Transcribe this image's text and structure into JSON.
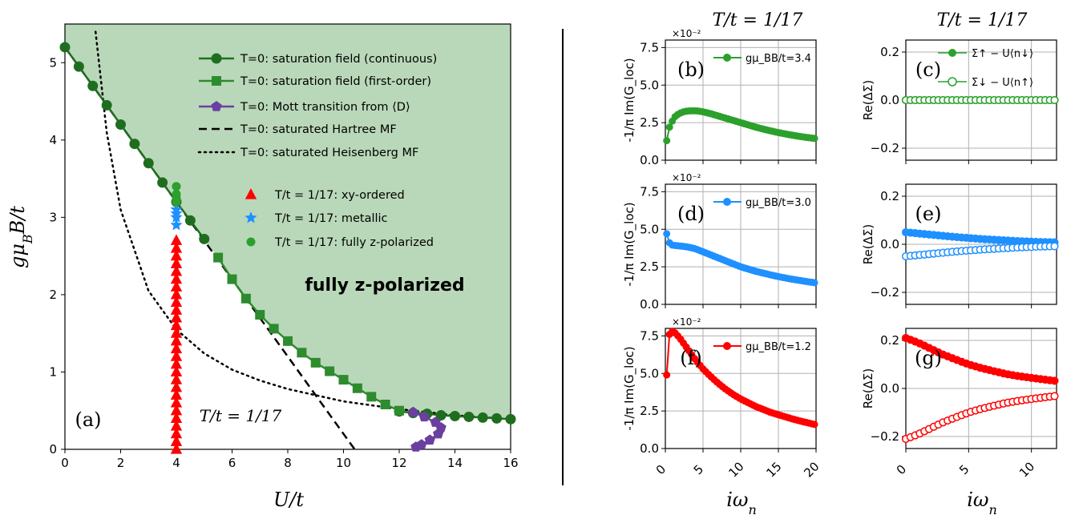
{
  "chart_data": [
    {
      "type": "line",
      "panel": "(a)",
      "xlabel": "U/t",
      "ylabel": "gμ_B B/t",
      "xlim": [
        0,
        16
      ],
      "ylim": [
        0,
        5.5
      ],
      "xticks": [
        "0",
        "2",
        "4",
        "6",
        "8",
        "10",
        "12",
        "14",
        "16"
      ],
      "yticks": [
        "0",
        "1",
        "2",
        "3",
        "4",
        "5"
      ],
      "grid": false,
      "legend": "top-right",
      "region_label": "fully z-polarized",
      "temperature_label": "T/t = 1/17",
      "series": [
        {
          "name": "T=0: saturation field (continuous)",
          "color": "#1f6e1f",
          "marker": "circle",
          "x": [
            0,
            0.5,
            1,
            1.5,
            2,
            2.5,
            3,
            3.5,
            4,
            4.5,
            5
          ],
          "y": [
            5.2,
            4.95,
            4.7,
            4.45,
            4.2,
            3.95,
            3.7,
            3.45,
            3.2,
            2.96,
            2.72
          ]
        },
        {
          "name": "T=0: saturation field (continuous)",
          "color": "#1f6e1f",
          "marker": "circle",
          "x": [
            12,
            12.5,
            13,
            13.5,
            14,
            14.5,
            15,
            15.5,
            16
          ],
          "y": [
            0.49,
            0.47,
            0.46,
            0.44,
            0.43,
            0.42,
            0.41,
            0.4,
            0.39
          ]
        },
        {
          "name": "T=0: saturation field (first-order)",
          "color": "#2e8b2e",
          "marker": "square",
          "x": [
            5.5,
            6,
            6.5,
            7,
            7.5,
            8,
            8.5,
            9,
            9.5,
            10,
            10.5,
            11,
            11.5,
            12
          ],
          "y": [
            2.48,
            2.2,
            1.95,
            1.74,
            1.56,
            1.4,
            1.25,
            1.12,
            1.01,
            0.9,
            0.79,
            0.68,
            0.58,
            0.5
          ]
        },
        {
          "name": "T=0: Mott transition from ⟨D⟩",
          "color": "#6b3fa0",
          "marker": "pentagon",
          "x": [
            12.5,
            12.9,
            13.3,
            13.5,
            13.4,
            13.1,
            12.8,
            12.6
          ],
          "y": [
            0.48,
            0.42,
            0.35,
            0.28,
            0.2,
            0.12,
            0.06,
            0.03
          ]
        },
        {
          "name": "T=0: saturated Hartree MF",
          "color": "#000000",
          "dash": "dashed",
          "x": [
            0,
            10.4
          ],
          "y": [
            5.2,
            0
          ]
        },
        {
          "name": "T=0: saturated Heisenberg MF",
          "color": "#000000",
          "dash": "dotted",
          "x": [
            1.1,
            1.5,
            2,
            3,
            4,
            5,
            6,
            7,
            8,
            10,
            12,
            14,
            16
          ],
          "y": [
            5.4,
            4.1,
            3.1,
            2.05,
            1.55,
            1.24,
            1.03,
            0.89,
            0.78,
            0.62,
            0.52,
            0.44,
            0.39
          ]
        },
        {
          "name": "T/t=1/17: xy-ordered",
          "color": "#ff0000",
          "marker": "triangle",
          "x": [
            4,
            4,
            4,
            4,
            4,
            4,
            4,
            4,
            4,
            4,
            4,
            4,
            4,
            4,
            4,
            4,
            4,
            4,
            4,
            4,
            4,
            4,
            4,
            4,
            4,
            4,
            4,
            4
          ],
          "y": [
            0,
            0.1,
            0.2,
            0.3,
            0.4,
            0.5,
            0.6,
            0.7,
            0.8,
            0.9,
            1.0,
            1.1,
            1.2,
            1.3,
            1.4,
            1.5,
            1.6,
            1.7,
            1.8,
            1.9,
            2.0,
            2.1,
            2.2,
            2.3,
            2.4,
            2.5,
            2.6,
            2.7
          ]
        },
        {
          "name": "T/t=1/17: metallic",
          "color": "#1e90ff",
          "marker": "star",
          "x": [
            4,
            4,
            4,
            4
          ],
          "y": [
            2.9,
            3.0,
            3.05,
            3.1
          ]
        },
        {
          "name": "T/t=1/17: fully z-polarized",
          "color": "#2ca02c",
          "marker": "circle",
          "x": [
            4,
            4,
            4,
            4
          ],
          "y": [
            3.2,
            3.25,
            3.3,
            3.4
          ]
        }
      ]
    },
    {
      "type": "line",
      "panel": "(b)",
      "title": "T/t = 1/17",
      "xlim": [
        0,
        20
      ],
      "ylim": [
        0,
        8
      ],
      "y_multiplier": "×10⁻²",
      "legend_label": "gμ_BB/t=3.4",
      "color": "#2ca02c",
      "ylabel": "-1/π Im(G_loc)",
      "x": [
        0.18,
        0.55,
        0.92,
        1.29,
        1.66,
        2.03,
        2.4,
        2.77,
        3.14,
        3.51,
        3.88,
        4.25,
        5,
        6,
        7,
        8,
        9,
        10,
        11,
        12,
        13,
        14,
        15,
        16,
        17,
        18,
        19,
        20
      ],
      "y": [
        1.3,
        2.2,
        2.6,
        2.9,
        3.05,
        3.15,
        3.22,
        3.26,
        3.28,
        3.29,
        3.29,
        3.28,
        3.22,
        3.1,
        2.95,
        2.8,
        2.65,
        2.5,
        2.35,
        2.2,
        2.07,
        1.95,
        1.84,
        1.74,
        1.65,
        1.57,
        1.5,
        1.44
      ]
    },
    {
      "type": "line",
      "panel": "(c)",
      "title": "T/t = 1/17",
      "xlim": [
        0,
        12
      ],
      "ylim": [
        -0.25,
        0.25
      ],
      "ylabel": "Re(ΔΣ)",
      "series": [
        {
          "name": "Σ↑ − U⟨n↓⟩",
          "color": "#2ca02c",
          "fill": "filled"
        },
        {
          "name": "Σ↓ − U⟨n↑⟩",
          "color": "#2ca02c",
          "fill": "open"
        }
      ],
      "values_up": [
        0,
        0,
        0,
        0,
        0,
        0,
        0,
        0,
        0,
        0,
        0,
        0,
        0
      ],
      "values_dn": [
        0,
        0,
        0,
        0,
        0,
        0,
        0,
        0,
        0,
        0,
        0,
        0,
        0
      ]
    },
    {
      "type": "line",
      "panel": "(d)",
      "xlim": [
        0,
        20
      ],
      "ylim": [
        0,
        8
      ],
      "y_multiplier": "×10⁻²",
      "legend_label": "gμ_BB/t=3.0",
      "color": "#1e90ff",
      "ylabel": "-1/π Im(G_loc)",
      "x": [
        0.18,
        0.55,
        0.92,
        1.29,
        1.66,
        2.03,
        2.4,
        3,
        4,
        5,
        6,
        7,
        8,
        9,
        10,
        11,
        12,
        13,
        14,
        15,
        16,
        17,
        18,
        19,
        20
      ],
      "y": [
        4.7,
        4.1,
        3.95,
        3.92,
        3.9,
        3.88,
        3.86,
        3.82,
        3.7,
        3.5,
        3.3,
        3.1,
        2.9,
        2.7,
        2.5,
        2.35,
        2.2,
        2.08,
        1.96,
        1.85,
        1.75,
        1.66,
        1.58,
        1.5,
        1.43
      ]
    },
    {
      "type": "line",
      "panel": "(e)",
      "xlim": [
        0,
        12
      ],
      "ylim": [
        -0.25,
        0.25
      ],
      "ylabel": "Re(ΔΣ)",
      "values_up": [
        0.05,
        0.045,
        0.04,
        0.035,
        0.03,
        0.026,
        0.022,
        0.019,
        0.016,
        0.013,
        0.011,
        0.009,
        0.008
      ],
      "values_dn": [
        -0.05,
        -0.045,
        -0.04,
        -0.035,
        -0.03,
        -0.026,
        -0.022,
        -0.019,
        -0.016,
        -0.013,
        -0.011,
        -0.009,
        -0.008
      ]
    },
    {
      "type": "line",
      "panel": "(f)",
      "xlim": [
        0,
        20
      ],
      "ylim": [
        0,
        8
      ],
      "y_multiplier": "×10⁻²",
      "legend_label": "gμ_BB/t=1.2",
      "color": "#ff0000",
      "ylabel": "-1/π Im(G_loc)",
      "x": [
        0.18,
        0.55,
        0.92,
        1.29,
        1.66,
        2,
        3,
        4,
        5,
        6,
        7,
        8,
        9,
        10,
        11,
        12,
        13,
        14,
        15,
        16,
        17,
        18,
        19,
        20
      ],
      "y": [
        4.9,
        7.6,
        7.8,
        7.7,
        7.5,
        7.3,
        6.6,
        5.9,
        5.3,
        4.8,
        4.35,
        3.95,
        3.6,
        3.3,
        3.05,
        2.8,
        2.6,
        2.4,
        2.25,
        2.1,
        1.95,
        1.82,
        1.7,
        1.58
      ]
    },
    {
      "type": "line",
      "panel": "(g)",
      "xlim": [
        0,
        12
      ],
      "ylim": [
        -0.25,
        0.25
      ],
      "ylabel": "Re(ΔΣ)",
      "values_up": [
        0.21,
        0.19,
        0.165,
        0.14,
        0.12,
        0.1,
        0.085,
        0.072,
        0.06,
        0.051,
        0.044,
        0.037,
        0.031
      ],
      "values_dn": [
        -0.21,
        -0.19,
        -0.165,
        -0.14,
        -0.12,
        -0.1,
        -0.085,
        -0.072,
        -0.06,
        -0.051,
        -0.044,
        -0.037,
        -0.031
      ]
    }
  ],
  "text": {
    "a_title": "(a)",
    "a_region": "fully z-polarized",
    "a_temp": "T/t = 1/17",
    "a_xlabel": "U/t",
    "a_ylabel": "gμ",
    "a_ylabel_sub": "B",
    "a_ylabel_rest": "B/t",
    "leg1": "T=0: saturation field (continuous)",
    "leg2": "T=0: saturation field (first-order)",
    "leg3": "T=0: Mott transition from ⟨D⟩",
    "leg4": "T=0: saturated Hartree MF",
    "leg5": "T=0: saturated Heisenberg MF",
    "leg6": "T/t = 1/17: xy-ordered",
    "leg7": "T/t = 1/17: metallic",
    "leg8": "T/t = 1/17: fully z-polarized",
    "b_title": "T/t = 1/17",
    "c_title": "T/t = 1/17",
    "mult": "×10⁻²",
    "b": "(b)",
    "c": "(c)",
    "d": "(d)",
    "e": "(e)",
    "f": "(f)",
    "g": "(g)",
    "b_leg": "gμ_BB/t=3.4",
    "d_leg": "gμ_BB/t=3.0",
    "f_leg": "gμ_BB/t=1.2",
    "c_leg1": "Σ↑ − U⟨n↓⟩",
    "c_leg2": "Σ↓ − U⟨n↑⟩",
    "ylab_G": "-1/π Im(G_loc)",
    "ylab_S": "Re(ΔΣ)",
    "x_iw": "iω",
    "x_iw_sub": "n"
  }
}
